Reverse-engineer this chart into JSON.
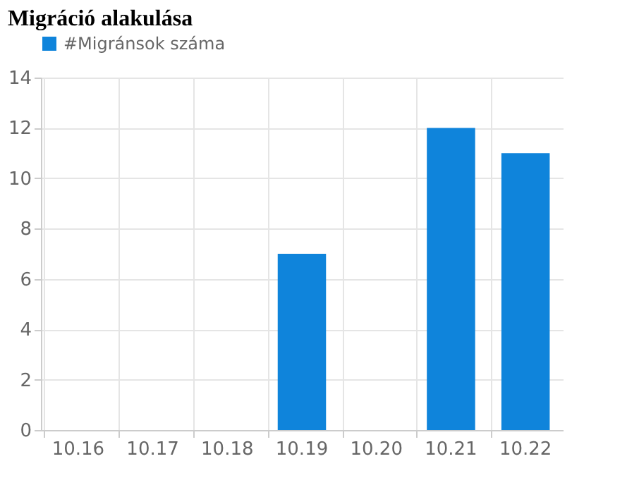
{
  "chart_data": {
    "type": "bar",
    "title": "Migráció alakulása",
    "categories": [
      "10.16",
      "10.17",
      "10.18",
      "10.19",
      "10.20",
      "10.21",
      "10.22"
    ],
    "series": [
      {
        "name": "#Migránsok száma",
        "color": "#0f84db",
        "values": [
          0,
          0,
          0,
          7,
          0,
          12,
          11
        ]
      }
    ],
    "ylim": [
      0,
      14
    ],
    "yticks": [
      0,
      2,
      4,
      6,
      8,
      10,
      12,
      14
    ],
    "grid": true,
    "legend": "top"
  }
}
